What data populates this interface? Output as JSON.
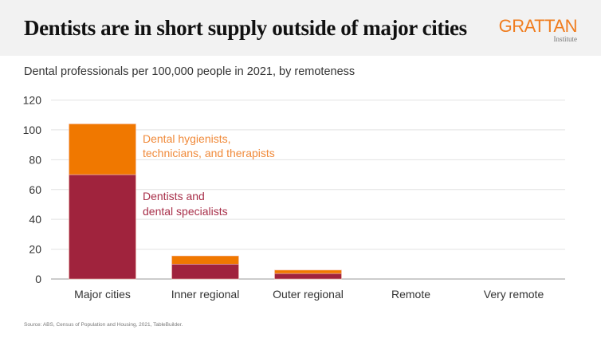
{
  "header": {
    "title": "Dentists are in short supply outside of major cities",
    "logo": {
      "name": "GRATTAN",
      "subname": "Institute"
    }
  },
  "subtitle": "Dental professionals per 100,000 people in 2021, by remoteness",
  "source": "Source: ABS, Census of Population and Housing, 2021, TableBuilder.",
  "colors": {
    "dentists": "#a0233d",
    "hygienists": "#f07800",
    "label_hygienists": "#f08a3a",
    "label_dentists": "#a8304a",
    "grid": "#e2e2e2",
    "axis": "#999999"
  },
  "chart_data": {
    "type": "bar",
    "stacked": true,
    "title": "Dentists are in short supply outside of major cities",
    "subtitle": "Dental professionals per 100,000 people in 2021, by remoteness",
    "xlabel": "",
    "ylabel": "",
    "ylim": [
      0,
      120
    ],
    "yticks": [
      0,
      20,
      40,
      60,
      80,
      100,
      120
    ],
    "grid": true,
    "categories": [
      "Major cities",
      "Inner regional",
      "Outer regional",
      "Remote",
      "Very remote"
    ],
    "series": [
      {
        "name": "Dentists and dental specialists",
        "label_lines": [
          "Dentists and",
          "dental specialists"
        ],
        "values": [
          70,
          10,
          3.7,
          0,
          0
        ]
      },
      {
        "name": "Dental hygienists, technicians, and therapists",
        "label_lines": [
          "Dental hygienists,",
          "technicians, and therapists"
        ],
        "values": [
          34,
          5.5,
          2.3,
          0,
          0
        ]
      }
    ],
    "legend": "inline-right-of-first-bar"
  }
}
